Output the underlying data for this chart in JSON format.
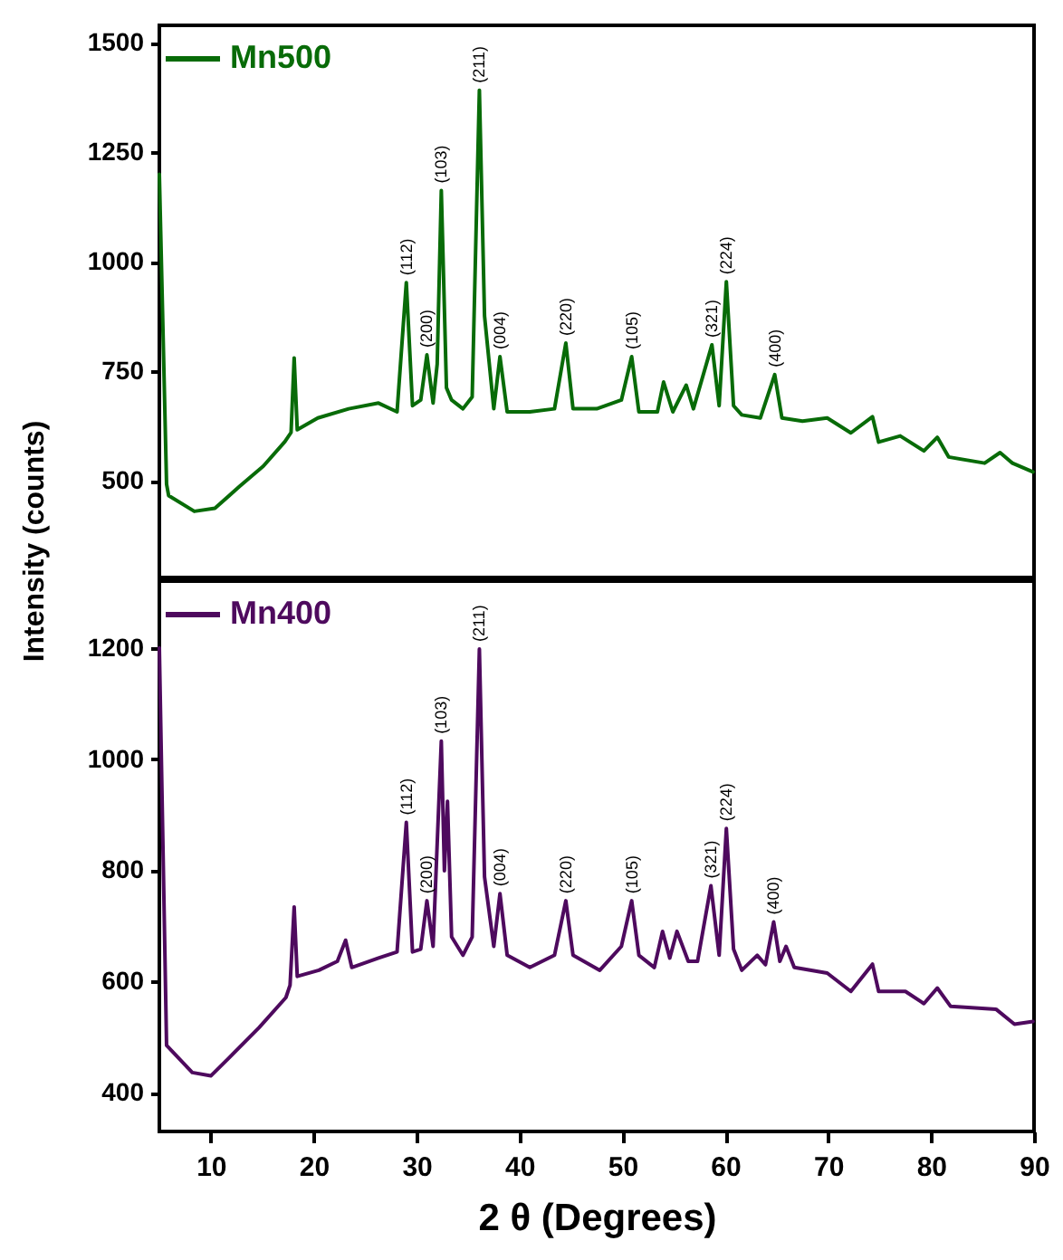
{
  "chart_data": [
    {
      "type": "line",
      "ylabel": "Intensity (counts)",
      "xlim": [
        5,
        90
      ],
      "xticks": [
        10,
        20,
        30,
        40,
        50,
        60,
        70,
        80,
        90
      ],
      "ylim": [
        280,
        1540
      ],
      "yticks": [
        500,
        750,
        1000,
        1250,
        1500
      ],
      "tick_labels": "y",
      "legend": "top left",
      "grid": false,
      "series": [
        {
          "name": "Mn500",
          "color": "#086b08",
          "x": [
            5.0,
            5.7,
            5.9,
            8.4,
            10.4,
            12.8,
            15.1,
            17.2,
            17.8,
            18.1,
            18.4,
            20.4,
            23.4,
            26.3,
            28.1,
            29.0,
            29.6,
            30.4,
            31.0,
            31.6,
            32.0,
            32.4,
            32.9,
            33.4,
            34.5,
            35.4,
            36.1,
            36.6,
            37.5,
            38.1,
            38.8,
            41.0,
            43.4,
            44.5,
            45.2,
            47.5,
            49.9,
            50.9,
            51.6,
            53.4,
            54.0,
            54.9,
            56.2,
            56.9,
            58.7,
            59.4,
            60.1,
            60.8,
            61.6,
            63.4,
            64.8,
            65.5,
            67.5,
            69.9,
            72.2,
            74.3,
            74.9,
            77.0,
            79.3,
            80.6,
            81.7,
            85.2,
            86.7,
            87.9,
            89.9
          ],
          "values": [
            1200,
            493,
            467,
            431,
            438,
            488,
            534,
            590,
            611,
            781,
            617,
            644,
            665,
            678,
            658,
            953,
            672,
            685,
            788,
            678,
            767,
            1163,
            713,
            685,
            665,
            692,
            1392,
            877,
            665,
            784,
            658,
            658,
            665,
            815,
            665,
            665,
            685,
            784,
            658,
            658,
            726,
            658,
            719,
            665,
            811,
            672,
            955,
            672,
            651,
            644,
            743,
            644,
            637,
            644,
            610,
            647,
            589,
            603,
            569,
            600,
            555,
            541,
            565,
            541,
            521
          ]
        }
      ],
      "annotations": [
        {
          "text": "(112)",
          "x": 29.0,
          "y": 953
        },
        {
          "text": "(200)",
          "x": 31.0,
          "y": 788
        },
        {
          "text": "(103)",
          "x": 32.4,
          "y": 1163
        },
        {
          "text": "(211)",
          "x": 36.1,
          "y": 1392
        },
        {
          "text": "(004)",
          "x": 38.1,
          "y": 784
        },
        {
          "text": "(220)",
          "x": 44.5,
          "y": 815
        },
        {
          "text": "(105)",
          "x": 50.9,
          "y": 784
        },
        {
          "text": "(321)",
          "x": 58.7,
          "y": 811
        },
        {
          "text": "(224)",
          "x": 60.1,
          "y": 955
        },
        {
          "text": "(400)",
          "x": 64.8,
          "y": 743
        }
      ]
    },
    {
      "type": "line",
      "xlabel": "2 θ (Degrees)",
      "xlim": [
        5,
        90
      ],
      "xticks": [
        10,
        20,
        30,
        40,
        50,
        60,
        70,
        80,
        90
      ],
      "ylim": [
        330,
        1320
      ],
      "yticks": [
        400,
        600,
        800,
        1000,
        1200
      ],
      "legend": "top left",
      "grid": false,
      "series": [
        {
          "name": "Mn400",
          "color": "#4e0a5e",
          "x": [
            5.0,
            5.7,
            8.2,
            10.0,
            11.8,
            14.7,
            17.3,
            17.7,
            18.1,
            18.4,
            20.5,
            22.3,
            23.1,
            23.7,
            26.3,
            28.1,
            29.0,
            29.6,
            30.4,
            31.0,
            31.6,
            32.4,
            32.7,
            33.0,
            33.4,
            34.5,
            35.4,
            36.1,
            36.6,
            37.5,
            38.1,
            38.8,
            41.0,
            43.4,
            44.5,
            45.2,
            47.8,
            49.9,
            50.9,
            51.6,
            53.1,
            53.9,
            54.6,
            55.3,
            56.4,
            57.3,
            58.6,
            59.4,
            60.1,
            60.8,
            61.6,
            63.1,
            63.9,
            64.7,
            65.3,
            65.9,
            66.7,
            69.9,
            72.2,
            74.3,
            74.9,
            77.5,
            79.3,
            80.6,
            81.9,
            86.3,
            88.1,
            89.9
          ],
          "values": [
            1200,
            485,
            436,
            430,
            463,
            517,
            571,
            593,
            734,
            609,
            620,
            636,
            674,
            625,
            642,
            653,
            886,
            653,
            658,
            745,
            663,
            1032,
            799,
            924,
            680,
            647,
            680,
            1198,
            788,
            663,
            758,
            647,
            625,
            647,
            745,
            647,
            620,
            663,
            745,
            647,
            625,
            690,
            642,
            690,
            636,
            636,
            772,
            647,
            875,
            658,
            620,
            647,
            630,
            707,
            636,
            663,
            625,
            615,
            582,
            631,
            582,
            582,
            560,
            588,
            555,
            550,
            523,
            528
          ]
        }
      ],
      "annotations": [
        {
          "text": "(112)",
          "x": 29.0,
          "y": 886
        },
        {
          "text": "(200)",
          "x": 31.0,
          "y": 745
        },
        {
          "text": "(103)",
          "x": 32.4,
          "y": 1032
        },
        {
          "text": "(211)",
          "x": 36.1,
          "y": 1198
        },
        {
          "text": "(004)",
          "x": 38.1,
          "y": 758
        },
        {
          "text": "(220)",
          "x": 44.5,
          "y": 745
        },
        {
          "text": "(105)",
          "x": 50.9,
          "y": 745
        },
        {
          "text": "(321)",
          "x": 58.6,
          "y": 772
        },
        {
          "text": "(224)",
          "x": 60.1,
          "y": 875
        },
        {
          "text": "(400)",
          "x": 64.7,
          "y": 707
        }
      ]
    }
  ]
}
